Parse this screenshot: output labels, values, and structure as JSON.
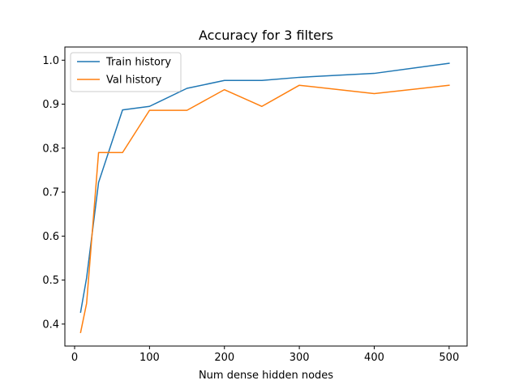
{
  "chart_data": {
    "type": "line",
    "title": "Accuracy for 3 filters",
    "xlabel": "Num dense hidden nodes",
    "ylabel": "",
    "xlim": [
      -13,
      524
    ],
    "ylim": [
      0.35,
      1.03
    ],
    "xticks": [
      0,
      100,
      200,
      300,
      400,
      500
    ],
    "yticks": [
      0.4,
      0.5,
      0.6,
      0.7,
      0.8,
      0.9,
      1.0
    ],
    "grid": false,
    "legend_position": "top-left",
    "x": [
      8,
      16,
      32,
      64,
      100,
      150,
      200,
      250,
      300,
      400,
      500
    ],
    "series": [
      {
        "name": "Train history",
        "color": "#1f77b4",
        "values": [
          0.427,
          0.505,
          0.722,
          0.887,
          0.895,
          0.936,
          0.954,
          0.954,
          0.961,
          0.97,
          0.993
        ]
      },
      {
        "name": "Val history",
        "color": "#ff7f0e",
        "values": [
          0.381,
          0.447,
          0.79,
          0.79,
          0.886,
          0.886,
          0.933,
          0.895,
          0.943,
          0.924,
          0.943
        ]
      }
    ]
  }
}
